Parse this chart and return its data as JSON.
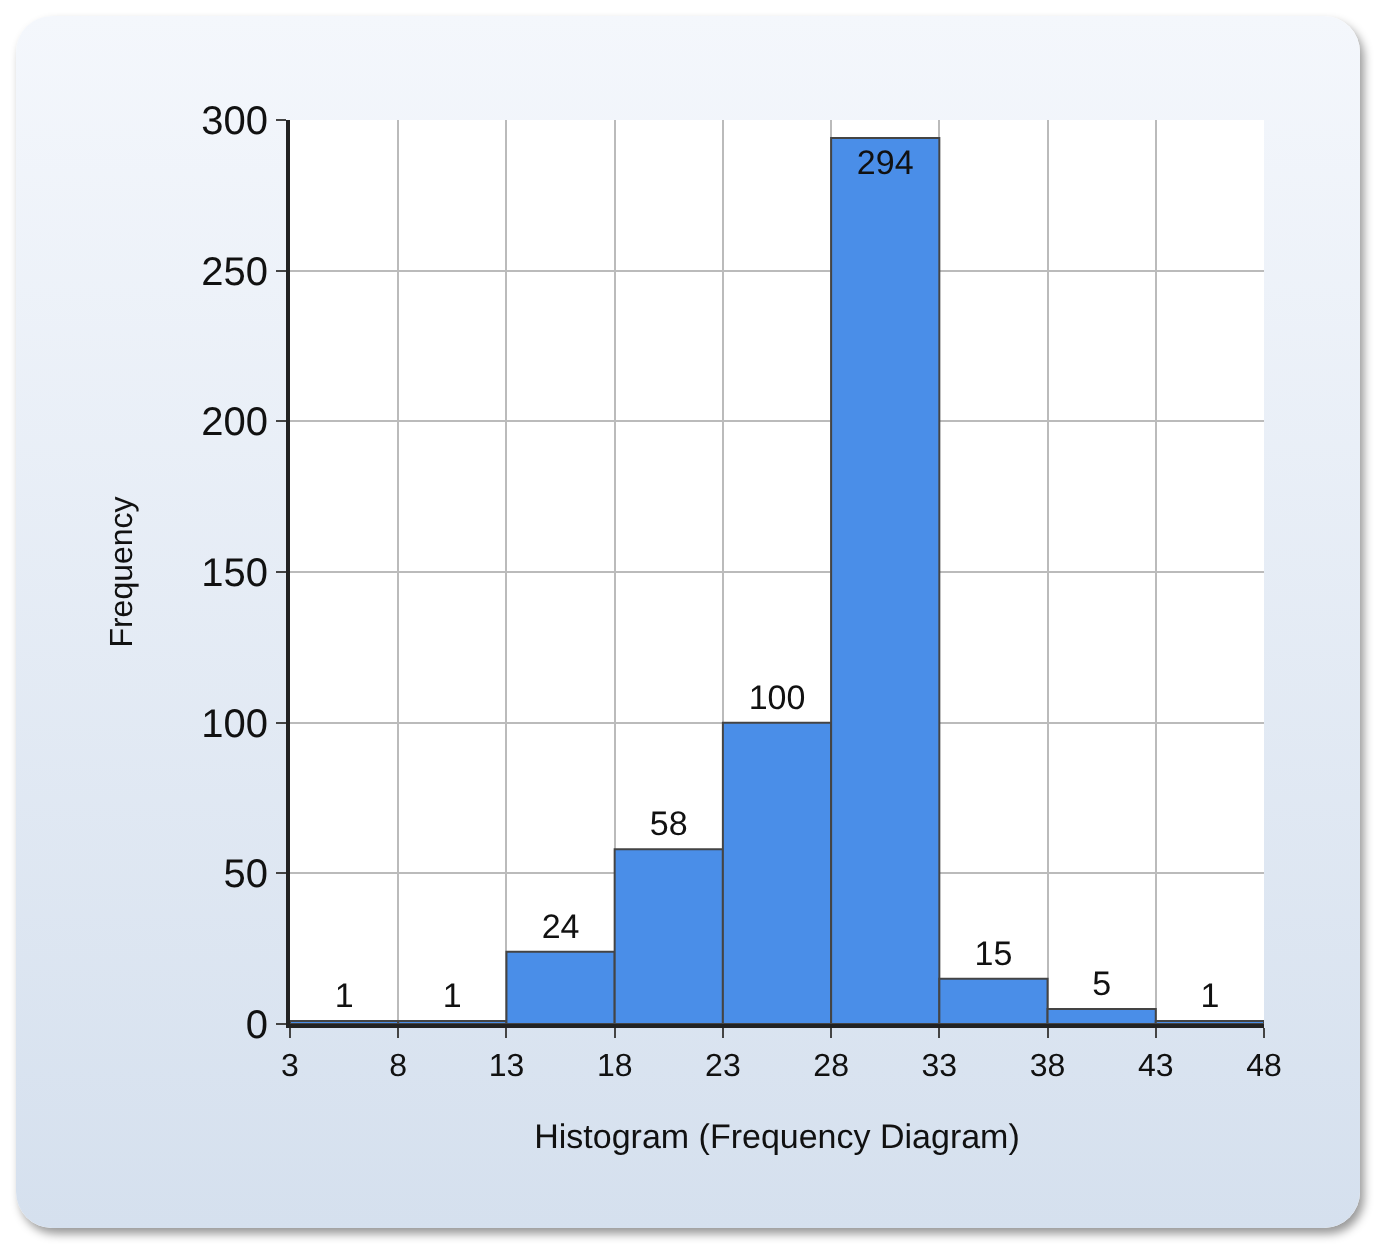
{
  "chart_data": {
    "type": "histogram",
    "xlabel": "Histogram (Frequency Diagram)",
    "ylabel": "Frequency",
    "bins": [
      3,
      8,
      13,
      18,
      23,
      28,
      33,
      38,
      43,
      48
    ],
    "values": [
      1,
      1,
      24,
      58,
      100,
      294,
      15,
      5,
      1
    ],
    "color": "#4a8ee8",
    "data_labels": true,
    "xlim": [
      3,
      48
    ],
    "xticks": [
      3,
      8,
      13,
      18,
      23,
      28,
      33,
      38,
      43,
      48
    ],
    "ylim": [
      0,
      300
    ],
    "yticks": [
      0,
      50,
      100,
      150,
      200,
      250,
      300
    ],
    "grid": true,
    "legend": false
  }
}
